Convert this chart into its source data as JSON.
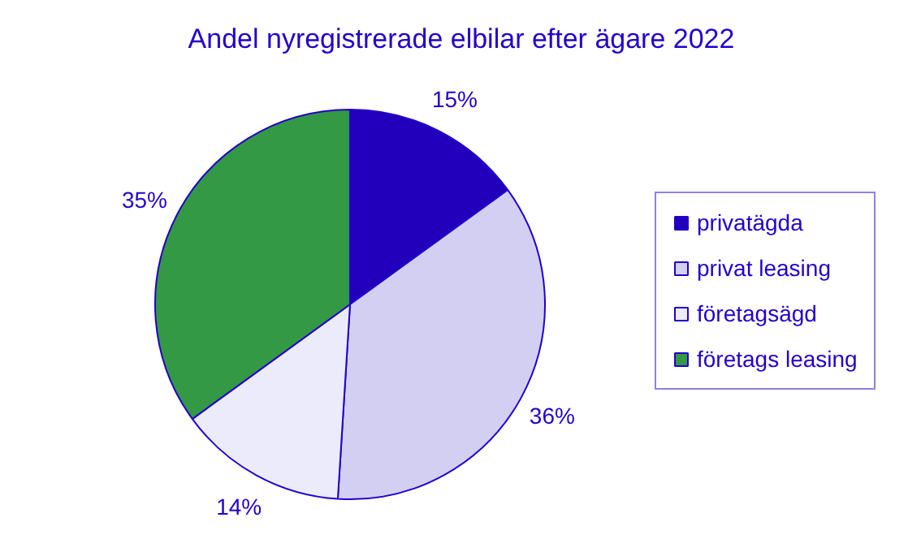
{
  "chart_data": {
    "type": "pie",
    "title": "Andel nyregistrerade elbilar efter ägare 2022",
    "categories": [
      "privatägda",
      "privat leasing",
      "företagsägd",
      "företags leasing"
    ],
    "values": [
      15,
      36,
      14,
      35
    ],
    "colors": [
      "#2200bb",
      "#d3cff3",
      "#ecebfc",
      "#339944"
    ],
    "value_labels": [
      "15%",
      "36%",
      "14%",
      "35%"
    ],
    "legend": "right"
  }
}
